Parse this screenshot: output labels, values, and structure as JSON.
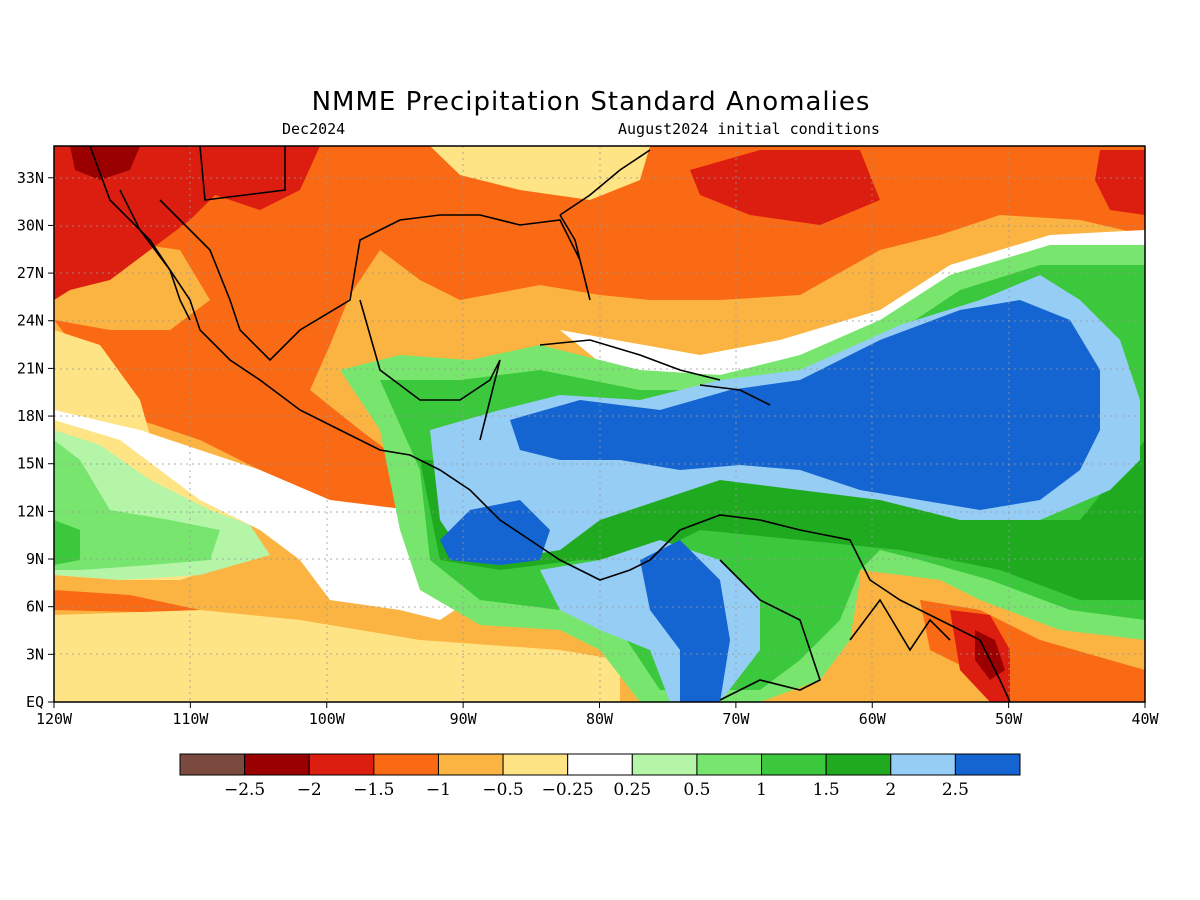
{
  "header": {
    "title": "NMME Precipitation Standard Anomalies",
    "valid_period": "Dec2024",
    "initial_conditions": "August2024 initial conditions"
  },
  "map": {
    "lon_range": [
      -120,
      -40
    ],
    "lat_range": [
      0,
      35
    ],
    "gridlines": true,
    "lon_labels": [
      {
        "lon": -120,
        "text": "120W"
      },
      {
        "lon": -110,
        "text": "110W"
      },
      {
        "lon": -100,
        "text": "100W"
      },
      {
        "lon": -90,
        "text": "90W"
      },
      {
        "lon": -80,
        "text": "80W"
      },
      {
        "lon": -70,
        "text": "70W"
      },
      {
        "lon": -60,
        "text": "60W"
      },
      {
        "lon": -50,
        "text": "50W"
      },
      {
        "lon": -40,
        "text": "40W"
      }
    ],
    "lat_labels": [
      {
        "lat": 0,
        "text": "EQ"
      },
      {
        "lat": 3,
        "text": "3N"
      },
      {
        "lat": 6,
        "text": "6N"
      },
      {
        "lat": 9,
        "text": "9N"
      },
      {
        "lat": 12,
        "text": "12N"
      },
      {
        "lat": 15,
        "text": "15N"
      },
      {
        "lat": 18,
        "text": "18N"
      },
      {
        "lat": 21,
        "text": "21N"
      },
      {
        "lat": 24,
        "text": "24N"
      },
      {
        "lat": 27,
        "text": "27N"
      },
      {
        "lat": 30,
        "text": "30N"
      },
      {
        "lat": 33,
        "text": "33N"
      }
    ]
  },
  "colorbar": {
    "colors": [
      "#7b4a3e",
      "#9b0000",
      "#dc1e10",
      "#fa6a14",
      "#fbb442",
      "#fee484",
      "#ffffff",
      "#b4f5a8",
      "#78e66e",
      "#3cc83c",
      "#20aa20",
      "#96cdf5",
      "#1464d2"
    ],
    "labels": [
      "-2.5",
      "-2",
      "-1.5",
      "-1",
      "-0.5",
      "-0.25",
      "0.25",
      "0.5",
      "1",
      "1.5",
      "2",
      "2.5"
    ]
  }
}
